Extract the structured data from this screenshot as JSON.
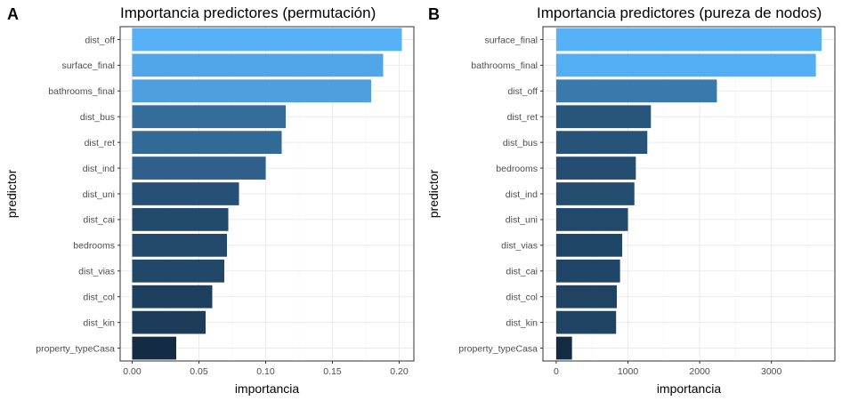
{
  "chart_data": [
    {
      "panel_label": "A",
      "type": "bar",
      "orientation": "horizontal",
      "title": "Importancia predictores (permutación)",
      "xlabel": "importancia",
      "ylabel": "predictor",
      "xlim": [
        -0.009,
        0.211
      ],
      "xticks": [
        0,
        0.05,
        0.1,
        0.15,
        0.2
      ],
      "xtick_labels": [
        "0.00",
        "0.05",
        "0.10",
        "0.15",
        "0.20"
      ],
      "grid": true,
      "legend": "none",
      "color_scale": {
        "low": "#132B43",
        "high": "#56B1F7"
      },
      "categories": [
        "dist_off",
        "surface_final",
        "bathrooms_final",
        "dist_bus",
        "dist_ret",
        "dist_ind",
        "dist_uni",
        "dist_cai",
        "bedrooms",
        "dist_vias",
        "dist_col",
        "dist_kin",
        "property_typeCasa"
      ],
      "values": [
        0.202,
        0.188,
        0.179,
        0.115,
        0.112,
        0.1,
        0.08,
        0.072,
        0.071,
        0.069,
        0.06,
        0.055,
        0.033
      ]
    },
    {
      "panel_label": "B",
      "type": "bar",
      "orientation": "horizontal",
      "title": "Importancia predictores (pureza de nodos)",
      "xlabel": "importancia",
      "ylabel": "predictor",
      "xlim": [
        -185,
        3885
      ],
      "xticks": [
        0,
        1000,
        2000,
        3000
      ],
      "xtick_labels": [
        "0",
        "1000",
        "2000",
        "3000"
      ],
      "grid": true,
      "legend": "none",
      "color_scale": {
        "low": "#132B43",
        "high": "#56B1F7"
      },
      "categories": [
        "surface_final",
        "bathrooms_final",
        "dist_off",
        "dist_ret",
        "dist_bus",
        "bedrooms",
        "dist_ind",
        "dist_uni",
        "dist_vias",
        "dist_cai",
        "dist_col",
        "dist_kin",
        "property_typeCasa"
      ],
      "values": [
        3700,
        3620,
        2240,
        1320,
        1270,
        1110,
        1090,
        1000,
        920,
        890,
        845,
        835,
        220
      ]
    }
  ]
}
